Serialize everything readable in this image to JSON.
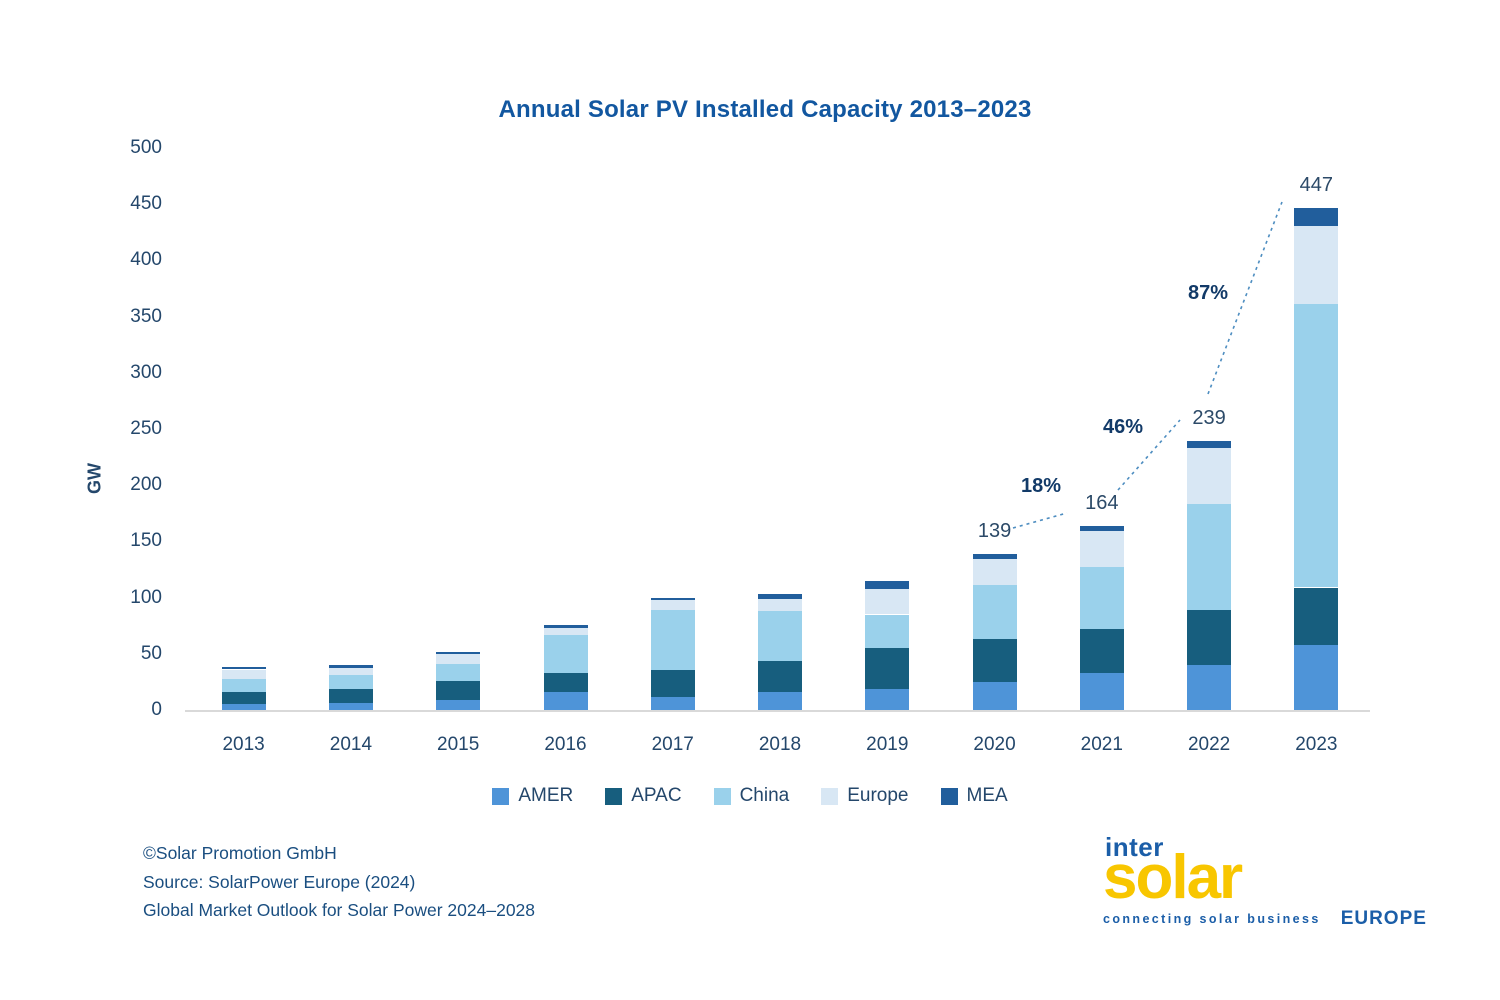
{
  "chart_data": {
    "type": "bar",
    "stacked": true,
    "title": "Annual Solar PV Installed Capacity 2013–2023",
    "xlabel": "",
    "ylabel": "GW",
    "ylim": [
      0,
      500
    ],
    "yticks": [
      0,
      50,
      100,
      150,
      200,
      250,
      300,
      350,
      400,
      450,
      500
    ],
    "grid": false,
    "legend_position": "bottom",
    "categories": [
      "2013",
      "2014",
      "2015",
      "2016",
      "2017",
      "2018",
      "2019",
      "2020",
      "2021",
      "2022",
      "2023"
    ],
    "series": [
      {
        "name": "AMER",
        "color": "#4E94D8",
        "values": [
          5,
          6,
          9,
          16,
          12,
          16,
          19,
          25,
          33,
          40,
          58
        ]
      },
      {
        "name": "APAC",
        "color": "#175E7E",
        "values": [
          11,
          13,
          17,
          17,
          24,
          28,
          36,
          38,
          39,
          49,
          51
        ]
      },
      {
        "name": "China",
        "color": "#9AD1EB",
        "values": [
          12,
          12,
          15,
          34,
          53,
          44,
          30,
          48,
          55,
          94,
          252
        ]
      },
      {
        "name": "Europe",
        "color": "#D8E7F4",
        "values": [
          8,
          6,
          9,
          6,
          9,
          11,
          23,
          23,
          32,
          50,
          70
        ]
      },
      {
        "name": "MEA",
        "color": "#215E9C",
        "values": [
          2,
          3,
          2,
          3,
          2,
          4,
          7,
          5,
          5,
          6,
          16
        ]
      }
    ],
    "total_labels": [
      {
        "category": "2020",
        "value": "139"
      },
      {
        "category": "2021",
        "value": "164"
      },
      {
        "category": "2022",
        "value": "239"
      },
      {
        "category": "2023",
        "value": "447"
      }
    ],
    "growth_labels": [
      {
        "from": "2020",
        "to": "2021",
        "text": "18%"
      },
      {
        "from": "2021",
        "to": "2022",
        "text": "46%"
      },
      {
        "from": "2022",
        "to": "2023",
        "text": "87%"
      }
    ],
    "connector_color": "#4D8DC0",
    "axis_text_color": "#24476B",
    "title_color": "#1257A0"
  },
  "footer": {
    "line1": "©Solar Promotion GmbH",
    "line2": "Source: SolarPower Europe (2024)",
    "line3": "Global Market Outlook for Solar Power 2024–2028"
  },
  "logo": {
    "inter": "inter",
    "solar": "solar",
    "tagline": "connecting solar business",
    "region": "EUROPE",
    "blue": "#1B5EA8",
    "yellow": "#F8C600"
  }
}
